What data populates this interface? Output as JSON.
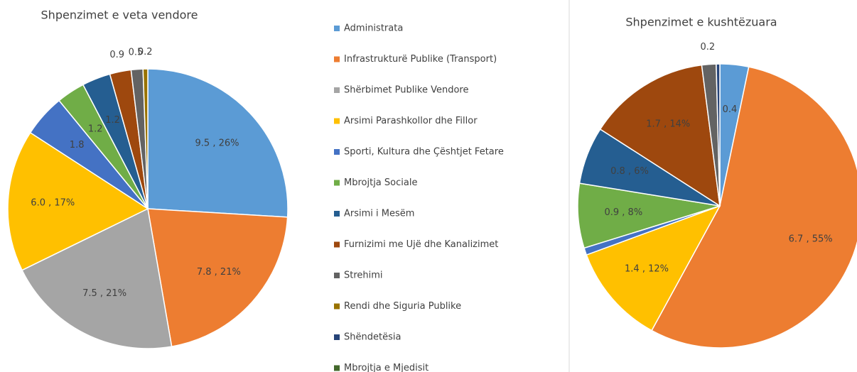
{
  "chart_data": [
    {
      "type": "pie",
      "title": "Shpenzimet e veta vendore",
      "categories": [
        "Administrata",
        "Infrastrukturë Publike (Transport)",
        "Shërbimet Publike Vendore",
        "Arsimi Parashkollor dhe Fillor",
        "Sporti, Kultura dhe Çështjet Fetare",
        "Mbrojtja Sociale",
        "Arsimi i Mesëm",
        "Furnizimi me Ujë dhe Kanalizimet",
        "Strehimi",
        "Rendi dhe Siguria Publike",
        "Shëndetësia",
        "Mbrojtja e Mjedisit"
      ],
      "colors": [
        "#5b9bd5",
        "#ed7d31",
        "#a5a5a5",
        "#ffc000",
        "#4472c4",
        "#70ad47",
        "#255e91",
        "#9e480e",
        "#636363",
        "#997300",
        "#264478",
        "#43682b"
      ],
      "values": [
        9.5,
        7.8,
        7.5,
        6.0,
        1.8,
        1.2,
        1.2,
        0.9,
        0.5,
        0.2,
        0,
        0
      ],
      "value_labels": [
        "9.5 , 26%",
        "7.8 , 21%",
        "7.5 , 21%",
        "6.0 , 17%",
        "1.8",
        "1.2",
        "1.2",
        "0.9",
        "0.5",
        "0.2",
        null,
        null
      ]
    },
    {
      "type": "pie",
      "title": "Shpenzimet e kushtëzuara",
      "values": [
        0.4,
        6.7,
        0,
        1.4,
        0.1,
        0.9,
        0.8,
        1.7,
        0.2,
        0,
        0.05,
        0
      ],
      "value_labels": [
        "0.4",
        "6.7 , 55%",
        null,
        "1.4 , 12%",
        null,
        "0.9 , 8%",
        "0.8 , 6%",
        "1.7 , 14%",
        "0.2",
        null,
        null,
        null
      ]
    }
  ]
}
